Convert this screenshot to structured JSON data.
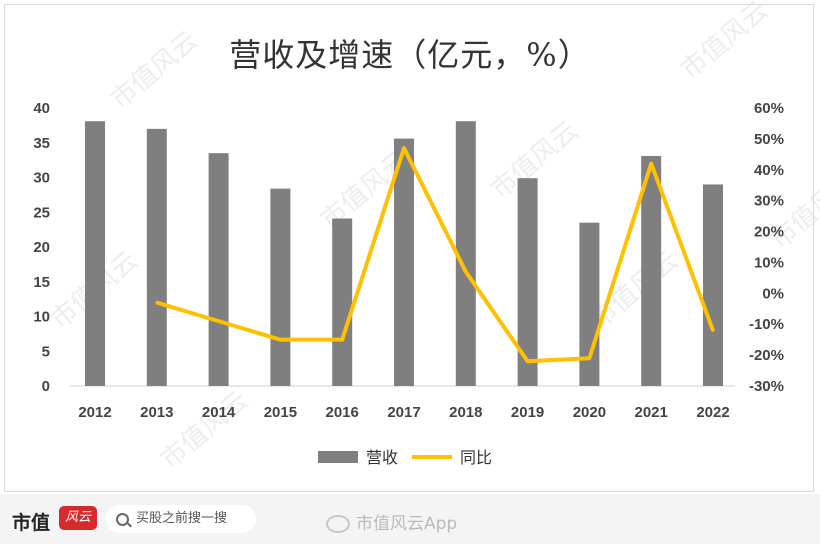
{
  "chart_data": {
    "type": "bar+line",
    "title": "营收及增速（亿元，%）",
    "categories": [
      "2012",
      "2013",
      "2014",
      "2015",
      "2016",
      "2017",
      "2018",
      "2019",
      "2020",
      "2021",
      "2022"
    ],
    "series": [
      {
        "name": "营收",
        "type": "bar",
        "axis": "left",
        "color": "#7f7f7f",
        "values": [
          38.1,
          37.0,
          33.5,
          28.4,
          24.1,
          35.6,
          38.1,
          29.9,
          23.5,
          33.1,
          29.0
        ]
      },
      {
        "name": "同比",
        "type": "line",
        "axis": "right",
        "color": "#FFC000",
        "values": [
          null,
          -3,
          -9,
          -15,
          -15,
          47,
          7,
          -22,
          -21,
          42,
          -12
        ]
      }
    ],
    "y_left": {
      "min": 0,
      "max": 40,
      "ticks": [
        "0",
        "5",
        "10",
        "15",
        "20",
        "25",
        "30",
        "35",
        "40"
      ]
    },
    "y_right": {
      "min": -30,
      "max": 60,
      "ticks": [
        "-30%",
        "-20%",
        "-10%",
        "0%",
        "10%",
        "20%",
        "30%",
        "40%",
        "50%",
        "60%"
      ]
    },
    "legend_position": "bottom",
    "grid": false
  },
  "watermark": "市值风云",
  "footer": {
    "brand": "市值",
    "brand_logo": "风云",
    "search_text": "买股之前搜一搜",
    "app_mark": "市值风云App"
  }
}
